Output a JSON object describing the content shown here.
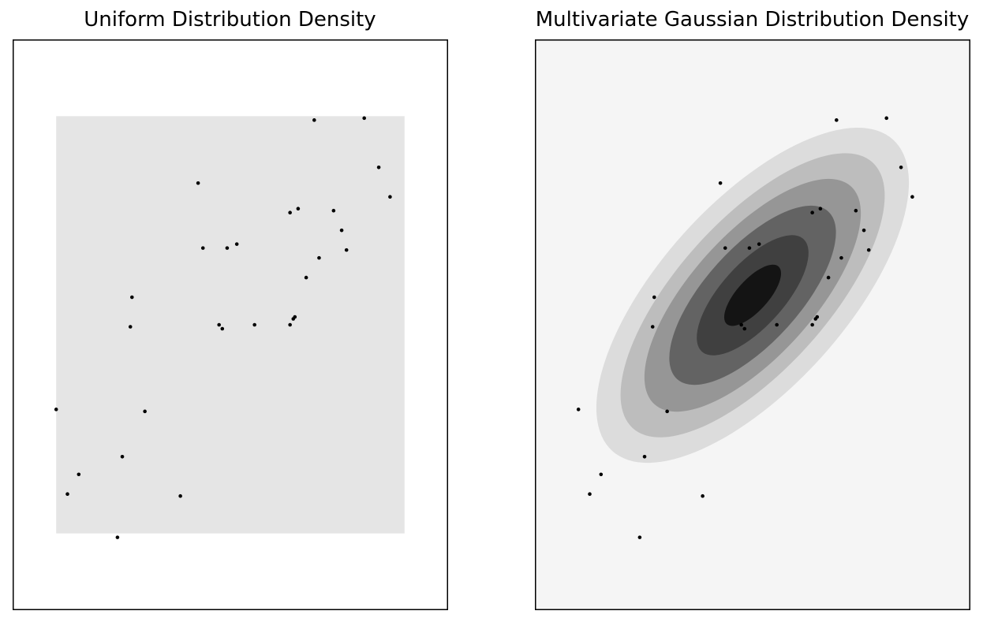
{
  "chart_data": [
    {
      "type": "scatter",
      "title": "Uniform Distribution Density",
      "xlim": [
        -1.35,
        1.35
      ],
      "ylim": [
        -1.45,
        1.45
      ],
      "density": {
        "kind": "uniform",
        "x_range": [
          -1.08,
          1.08
        ],
        "y_range": [
          -1.06,
          1.06
        ],
        "color": "#e5e5e5"
      },
      "background": "#ffffff",
      "grid": false,
      "points": [
        {
          "x": 0.52,
          "y": 1.04
        },
        {
          "x": 0.83,
          "y": 1.05
        },
        {
          "x": 0.92,
          "y": 0.8
        },
        {
          "x": 0.99,
          "y": 0.65
        },
        {
          "x": -0.2,
          "y": 0.72
        },
        {
          "x": 0.64,
          "y": 0.58
        },
        {
          "x": 0.69,
          "y": 0.48
        },
        {
          "x": 0.37,
          "y": 0.57
        },
        {
          "x": 0.42,
          "y": 0.59
        },
        {
          "x": -0.17,
          "y": 0.39
        },
        {
          "x": -0.02,
          "y": 0.39
        },
        {
          "x": 0.04,
          "y": 0.41
        },
        {
          "x": 0.55,
          "y": 0.34
        },
        {
          "x": 0.72,
          "y": 0.38
        },
        {
          "x": 0.47,
          "y": 0.24
        },
        {
          "x": -0.61,
          "y": 0.14
        },
        {
          "x": -0.07,
          "y": 0.0
        },
        {
          "x": -0.05,
          "y": -0.02
        },
        {
          "x": 0.15,
          "y": 0.0
        },
        {
          "x": 0.37,
          "y": 0.0
        },
        {
          "x": 0.39,
          "y": 0.03
        },
        {
          "x": 0.4,
          "y": 0.04
        },
        {
          "x": -0.62,
          "y": -0.01
        },
        {
          "x": -1.08,
          "y": -0.43
        },
        {
          "x": -0.53,
          "y": -0.44
        },
        {
          "x": -0.67,
          "y": -0.67
        },
        {
          "x": -0.94,
          "y": -0.76
        },
        {
          "x": -1.01,
          "y": -0.86
        },
        {
          "x": -0.31,
          "y": -0.87
        },
        {
          "x": -0.7,
          "y": -1.08
        }
      ]
    },
    {
      "type": "scatter",
      "title": "Multivariate Gaussian Distribution Density",
      "xlim": [
        -1.35,
        1.35
      ],
      "ylim": [
        -1.45,
        1.45
      ],
      "density": {
        "kind": "gaussian",
        "mean": [
          0.0,
          0.15
        ],
        "levels": [
          {
            "rx": 1.3,
            "ry": 0.47,
            "angle": 48,
            "color": "#dcdcdc"
          },
          {
            "rx": 1.11,
            "ry": 0.38,
            "angle": 48,
            "color": "#bdbdbd"
          },
          {
            "rx": 0.91,
            "ry": 0.31,
            "angle": 48,
            "color": "#969696"
          },
          {
            "rx": 0.7,
            "ry": 0.24,
            "angle": 48,
            "color": "#636363"
          },
          {
            "rx": 0.47,
            "ry": 0.16,
            "angle": 48,
            "color": "#404040"
          },
          {
            "rx": 0.24,
            "ry": 0.08,
            "angle": 48,
            "color": "#141414"
          }
        ]
      },
      "background": "#f5f5f5",
      "grid": false,
      "points": [
        {
          "x": 0.52,
          "y": 1.04
        },
        {
          "x": 0.83,
          "y": 1.05
        },
        {
          "x": 0.92,
          "y": 0.8
        },
        {
          "x": 0.99,
          "y": 0.65
        },
        {
          "x": -0.2,
          "y": 0.72
        },
        {
          "x": 0.64,
          "y": 0.58
        },
        {
          "x": 0.69,
          "y": 0.48
        },
        {
          "x": 0.37,
          "y": 0.57
        },
        {
          "x": 0.42,
          "y": 0.59
        },
        {
          "x": -0.17,
          "y": 0.39
        },
        {
          "x": -0.02,
          "y": 0.39
        },
        {
          "x": 0.04,
          "y": 0.41
        },
        {
          "x": 0.55,
          "y": 0.34
        },
        {
          "x": 0.72,
          "y": 0.38
        },
        {
          "x": 0.47,
          "y": 0.24
        },
        {
          "x": -0.61,
          "y": 0.14
        },
        {
          "x": -0.07,
          "y": 0.0
        },
        {
          "x": -0.05,
          "y": -0.02
        },
        {
          "x": 0.15,
          "y": 0.0
        },
        {
          "x": 0.37,
          "y": 0.0
        },
        {
          "x": 0.39,
          "y": 0.03
        },
        {
          "x": 0.4,
          "y": 0.04
        },
        {
          "x": -0.62,
          "y": -0.01
        },
        {
          "x": -1.08,
          "y": -0.43
        },
        {
          "x": -0.53,
          "y": -0.44
        },
        {
          "x": -0.67,
          "y": -0.67
        },
        {
          "x": -0.94,
          "y": -0.76
        },
        {
          "x": -1.01,
          "y": -0.86
        },
        {
          "x": -0.31,
          "y": -0.87
        },
        {
          "x": -0.7,
          "y": -1.08
        }
      ]
    }
  ]
}
